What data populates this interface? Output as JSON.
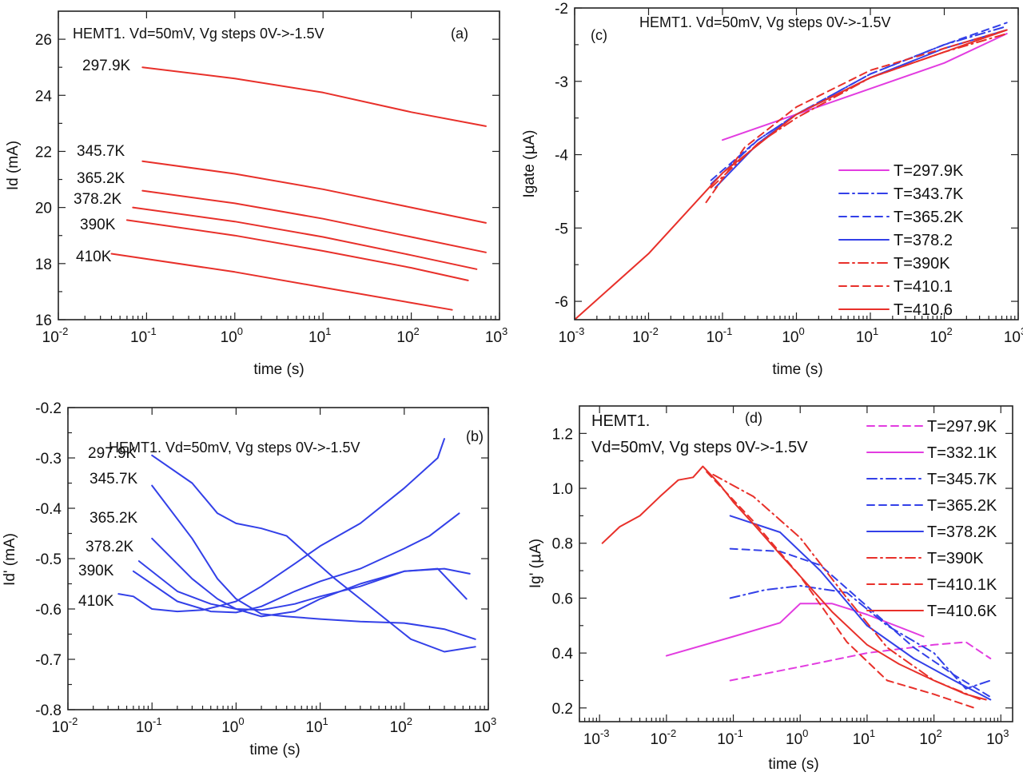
{
  "chart_data": [
    {
      "panel": "(a)",
      "type": "line",
      "title": "HEMT1. Vd=50mV, Vg steps 0V->-1.5V",
      "xlabel": "time (s)",
      "ylabel": "Id (mA)",
      "xscale": "log",
      "xlim": [
        0.01,
        1000
      ],
      "ylim": [
        16,
        27
      ],
      "x_ticks": [
        0.01,
        0.1,
        1,
        10,
        100,
        1000
      ],
      "x_tick_labels": [
        [
          "10",
          "-2"
        ],
        [
          "10",
          "-1"
        ],
        [
          "10",
          "0"
        ],
        [
          "10",
          "1"
        ],
        [
          "10",
          "2"
        ],
        [
          "10",
          "3"
        ]
      ],
      "y_ticks": [
        16,
        18,
        20,
        22,
        24,
        26
      ],
      "y_tick_labels": [
        "16",
        "18",
        "20",
        "22",
        "24",
        "26"
      ],
      "series": [
        {
          "name": "297.9K",
          "color": "#e8302a",
          "style": "solid",
          "x": [
            0.09,
            1,
            10,
            100,
            700
          ],
          "y": [
            25.0,
            24.6,
            24.1,
            23.4,
            22.9
          ]
        },
        {
          "name": "345.7K",
          "color": "#e8302a",
          "style": "solid",
          "x": [
            0.09,
            1,
            10,
            100,
            700
          ],
          "y": [
            21.65,
            21.2,
            20.65,
            20.0,
            19.45
          ]
        },
        {
          "name": "365.2K",
          "color": "#e8302a",
          "style": "solid",
          "x": [
            0.09,
            1,
            10,
            100,
            700
          ],
          "y": [
            20.6,
            20.15,
            19.6,
            18.95,
            18.4
          ]
        },
        {
          "name": "378.2K",
          "color": "#e8302a",
          "style": "solid",
          "x": [
            0.07,
            1,
            10,
            100,
            550
          ],
          "y": [
            20.0,
            19.5,
            18.95,
            18.3,
            17.8
          ]
        },
        {
          "name": "390K",
          "color": "#e8302a",
          "style": "solid",
          "x": [
            0.06,
            1,
            10,
            100,
            440
          ],
          "y": [
            19.55,
            19.0,
            18.45,
            17.85,
            17.4
          ]
        },
        {
          "name": "410K",
          "color": "#e8302a",
          "style": "solid",
          "x": [
            0.04,
            1,
            10,
            100,
            290
          ],
          "y": [
            18.35,
            17.7,
            17.15,
            16.6,
            16.35
          ]
        }
      ],
      "label_text": [
        "297.9K",
        "345.7K",
        "365.2K",
        "378.2K",
        "390K",
        "410K"
      ]
    },
    {
      "panel": "(b)",
      "type": "line",
      "title": "HEMT1. Vd=50mV, Vg steps 0V->-1.5V",
      "xlabel": "time (s)",
      "ylabel": "Id' (mA)",
      "xscale": "log",
      "xlim": [
        0.01,
        1000
      ],
      "ylim": [
        -0.8,
        -0.2
      ],
      "x_ticks": [
        0.01,
        0.1,
        1,
        10,
        100,
        1000
      ],
      "x_tick_labels": [
        [
          "10",
          "-2"
        ],
        [
          "10",
          "-1"
        ],
        [
          "10",
          "0"
        ],
        [
          "10",
          "1"
        ],
        [
          "10",
          "2"
        ],
        [
          "10",
          "3"
        ]
      ],
      "y_ticks": [
        -0.8,
        -0.7,
        -0.6,
        -0.5,
        -0.4,
        -0.3,
        -0.2
      ],
      "y_tick_labels": [
        "-0.8",
        "-0.7",
        "-0.6",
        "-0.5",
        "-0.4",
        "-0.3",
        "-0.2"
      ],
      "series": [
        {
          "name": "297.9K",
          "color": "#3340e8",
          "style": "solid",
          "x": [
            0.1,
            0.3,
            0.6,
            1,
            2,
            4,
            8,
            15,
            30,
            60,
            120,
            300,
            700
          ],
          "y": [
            -0.295,
            -0.35,
            -0.41,
            -0.43,
            -0.44,
            -0.455,
            -0.5,
            -0.54,
            -0.58,
            -0.62,
            -0.66,
            -0.685,
            -0.675
          ]
        },
        {
          "name": "345.7K",
          "color": "#3340e8",
          "style": "solid",
          "x": [
            0.1,
            0.3,
            0.6,
            1,
            2,
            4,
            10,
            30,
            100,
            300,
            700
          ],
          "y": [
            -0.355,
            -0.46,
            -0.54,
            -0.58,
            -0.61,
            -0.615,
            -0.62,
            -0.625,
            -0.628,
            -0.64,
            -0.66
          ]
        },
        {
          "name": "365.2K",
          "color": "#3340e8",
          "style": "solid",
          "x": [
            0.1,
            0.3,
            0.6,
            1,
            2,
            5,
            10,
            30,
            100,
            300,
            600
          ],
          "y": [
            -0.46,
            -0.54,
            -0.58,
            -0.6,
            -0.615,
            -0.605,
            -0.58,
            -0.55,
            -0.525,
            -0.52,
            -0.53
          ]
        },
        {
          "name": "378.2K",
          "color": "#3340e8",
          "style": "solid",
          "x": [
            0.07,
            0.2,
            0.5,
            1,
            2,
            5,
            10,
            30,
            100,
            250,
            550
          ],
          "y": [
            -0.505,
            -0.565,
            -0.59,
            -0.6,
            -0.602,
            -0.59,
            -0.575,
            -0.555,
            -0.525,
            -0.52,
            -0.58
          ]
        },
        {
          "name": "390K",
          "color": "#3340e8",
          "style": "solid",
          "x": [
            0.06,
            0.2,
            0.5,
            1,
            2,
            5,
            10,
            30,
            100,
            200,
            450
          ],
          "y": [
            -0.525,
            -0.585,
            -0.605,
            -0.607,
            -0.595,
            -0.565,
            -0.545,
            -0.52,
            -0.48,
            -0.455,
            -0.41
          ]
        },
        {
          "name": "410K",
          "color": "#3340e8",
          "style": "solid",
          "x": [
            0.04,
            0.06,
            0.1,
            0.2,
            0.4,
            0.6,
            1,
            2,
            5,
            10,
            30,
            100,
            250,
            300
          ],
          "y": [
            -0.57,
            -0.575,
            -0.6,
            -0.605,
            -0.602,
            -0.595,
            -0.585,
            -0.555,
            -0.51,
            -0.475,
            -0.43,
            -0.36,
            -0.3,
            -0.262
          ]
        }
      ],
      "label_text": [
        "297.9K",
        "345.7K",
        "365.2K",
        "378.2K",
        "390K",
        "410K"
      ]
    },
    {
      "panel": "(c)",
      "type": "line",
      "title": "HEMT1. Vd=50mV, Vg steps 0V->-1.5V",
      "xlabel": "time (s)",
      "ylabel_main": "Igate (",
      "ylabel_greek": "μ",
      "ylabel_tail": "A)",
      "xscale": "log",
      "xlim": [
        0.001,
        1000
      ],
      "ylim": [
        -6.25,
        -2.0
      ],
      "x_ticks": [
        0.001,
        0.01,
        0.1,
        1,
        10,
        100,
        1000
      ],
      "x_tick_labels": [
        [
          "10",
          "-3"
        ],
        [
          "10",
          "-2"
        ],
        [
          "10",
          "-1"
        ],
        [
          "10",
          "0"
        ],
        [
          "10",
          "1"
        ],
        [
          "10",
          "2"
        ],
        [
          "10",
          "3"
        ]
      ],
      "y_ticks": [
        -6,
        -5,
        -4,
        -3,
        -2
      ],
      "y_tick_labels": [
        "-6",
        "-5",
        "-4",
        "-3",
        "-2"
      ],
      "legend": "bottom-right",
      "series": [
        {
          "name": "T=297.9K",
          "color": "#e23ce0",
          "style": "solid",
          "x": [
            0.1,
            1,
            10,
            100,
            700
          ],
          "y": [
            -3.8,
            -3.45,
            -3.1,
            -2.75,
            -2.35
          ]
        },
        {
          "name": "T=343.7K",
          "color": "#3340e8",
          "style": "dashdot",
          "x": [
            0.07,
            0.3,
            1,
            10,
            100,
            700
          ],
          "y": [
            -4.4,
            -3.8,
            -3.45,
            -2.9,
            -2.5,
            -2.25
          ]
        },
        {
          "name": "T=365.2K",
          "color": "#3340e8",
          "style": "dashed",
          "x": [
            0.07,
            0.3,
            1,
            10,
            100,
            700
          ],
          "y": [
            -4.35,
            -3.8,
            -3.45,
            -2.9,
            -2.5,
            -2.2
          ]
        },
        {
          "name": "T=378.2",
          "color": "#3340e8",
          "style": "solid",
          "x": [
            0.08,
            0.3,
            1,
            10,
            100,
            700
          ],
          "y": [
            -4.45,
            -3.85,
            -3.45,
            -2.95,
            -2.55,
            -2.3
          ]
        },
        {
          "name": "T=390K",
          "color": "#e8302a",
          "style": "dashdot",
          "x": [
            0.07,
            0.3,
            1,
            10,
            100,
            700
          ],
          "y": [
            -4.45,
            -3.85,
            -3.5,
            -2.95,
            -2.6,
            -2.35
          ]
        },
        {
          "name": "T=410.1",
          "color": "#e8302a",
          "style": "dashed",
          "x": [
            0.06,
            0.2,
            1,
            10,
            100,
            700
          ],
          "y": [
            -4.65,
            -3.9,
            -3.35,
            -2.85,
            -2.55,
            -2.3
          ]
        },
        {
          "name": "T=410.6",
          "color": "#e8302a",
          "style": "solid",
          "x": [
            0.001,
            0.01,
            0.1,
            1,
            10,
            100,
            700
          ],
          "y": [
            -6.25,
            -5.35,
            -4.25,
            -3.45,
            -2.95,
            -2.6,
            -2.3
          ]
        }
      ]
    },
    {
      "panel": "(d)",
      "type": "line",
      "title": "HEMT1.",
      "subtitle": "Vd=50mV, Vg steps 0V->-1.5V",
      "xlabel": "time (s)",
      "ylabel_main": "Ig' (",
      "ylabel_greek": "μ",
      "ylabel_tail": "A)",
      "xscale": "log",
      "xlim": [
        0.0005,
        1500
      ],
      "ylim": [
        0.15,
        1.3
      ],
      "x_ticks": [
        0.001,
        0.01,
        0.1,
        1,
        10,
        100,
        1000
      ],
      "x_tick_labels": [
        [
          "10",
          "-3"
        ],
        [
          "10",
          "-2"
        ],
        [
          "10",
          "-1"
        ],
        [
          "10",
          "0"
        ],
        [
          "10",
          "1"
        ],
        [
          "10",
          "2"
        ],
        [
          "10",
          "3"
        ]
      ],
      "y_ticks": [
        0.2,
        0.4,
        0.6,
        0.8,
        1.0,
        1.2
      ],
      "y_tick_labels": [
        "0.2",
        "0.4",
        "0.6",
        "0.8",
        "1.0",
        "1.2"
      ],
      "legend": "top-right",
      "series": [
        {
          "name": "T=297.9K",
          "color": "#e23ce0",
          "style": "dashed",
          "x": [
            0.09,
            1,
            10,
            100,
            300,
            700
          ],
          "y": [
            0.3,
            0.35,
            0.4,
            0.43,
            0.44,
            0.38
          ]
        },
        {
          "name": "T=332.1K",
          "color": "#e23ce0",
          "style": "solid",
          "x": [
            0.01,
            0.1,
            0.5,
            1,
            3,
            10,
            70
          ],
          "y": [
            0.39,
            0.46,
            0.51,
            0.58,
            0.58,
            0.54,
            0.46
          ]
        },
        {
          "name": "T=345.7K",
          "color": "#3340e8",
          "style": "dashdot",
          "x": [
            0.09,
            0.3,
            1,
            5,
            20,
            100,
            300,
            700
          ],
          "y": [
            0.6,
            0.63,
            0.645,
            0.62,
            0.5,
            0.4,
            0.27,
            0.3
          ]
        },
        {
          "name": "T=365.2K",
          "color": "#3340e8",
          "style": "dashed",
          "x": [
            0.09,
            0.5,
            2,
            10,
            50,
            200,
            700
          ],
          "y": [
            0.78,
            0.77,
            0.72,
            0.57,
            0.42,
            0.32,
            0.24
          ]
        },
        {
          "name": "T=378.2K",
          "color": "#3340e8",
          "style": "solid",
          "x": [
            0.09,
            0.5,
            2,
            10,
            50,
            200,
            700
          ],
          "y": [
            0.9,
            0.84,
            0.7,
            0.5,
            0.38,
            0.3,
            0.23
          ]
        },
        {
          "name": "T=390K",
          "color": "#e8302a",
          "style": "dashdot",
          "x": [
            0.05,
            0.2,
            1,
            5,
            20,
            100,
            500
          ],
          "y": [
            1.05,
            0.97,
            0.82,
            0.6,
            0.42,
            0.3,
            0.23
          ]
        },
        {
          "name": "T=410.1K",
          "color": "#e8302a",
          "style": "dashed",
          "x": [
            0.04,
            0.2,
            1,
            5,
            20,
            100,
            400
          ],
          "y": [
            1.06,
            0.88,
            0.68,
            0.44,
            0.3,
            0.25,
            0.2
          ]
        },
        {
          "name": "T=410.6K",
          "color": "#e8302a",
          "style": "solid",
          "x": [
            0.0011,
            0.002,
            0.004,
            0.008,
            0.015,
            0.025,
            0.035,
            0.06,
            0.1,
            0.2,
            0.5,
            1,
            3,
            10,
            30,
            100,
            300,
            600
          ],
          "y": [
            0.8,
            0.86,
            0.9,
            0.97,
            1.03,
            1.04,
            1.08,
            1.02,
            0.95,
            0.87,
            0.76,
            0.68,
            0.55,
            0.43,
            0.36,
            0.3,
            0.25,
            0.23
          ]
        }
      ]
    }
  ]
}
